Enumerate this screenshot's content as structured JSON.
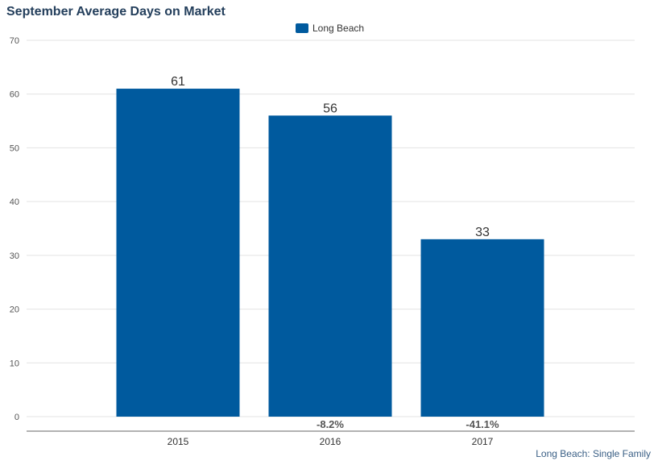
{
  "chart_data": {
    "type": "bar",
    "title": "September Average Days on Market",
    "categories": [
      "2015",
      "2016",
      "2017"
    ],
    "series": [
      {
        "name": "Long Beach",
        "values": [
          61,
          56,
          33
        ],
        "color": "#005a9e"
      }
    ],
    "change_labels": [
      "",
      "-8.2%",
      "-41.1%"
    ],
    "ylim": [
      0,
      70
    ],
    "yticks": [
      0,
      10,
      20,
      30,
      40,
      50,
      60,
      70
    ],
    "grid": true,
    "legend": "top-center",
    "xlabel": "",
    "ylabel": ""
  },
  "footer": "Long Beach: Single Family"
}
